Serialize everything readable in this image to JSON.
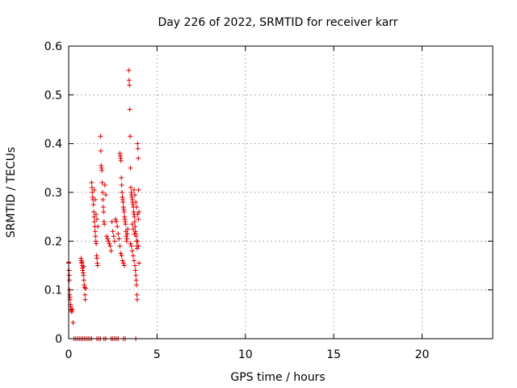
{
  "chart_data": {
    "type": "scatter",
    "title": "Day 226 of 2022, SRMTID for receiver karr",
    "xlabel": "GPS time / hours",
    "ylabel": "SRMTID / TECUs",
    "xlim": [
      0,
      24
    ],
    "ylim": [
      0,
      0.6
    ],
    "xticks": [
      0,
      5,
      10,
      15,
      20
    ],
    "xtick_labels": [
      "0",
      "5",
      "10",
      "15",
      "20"
    ],
    "yticks": [
      0,
      0.1,
      0.2,
      0.3,
      0.4,
      0.5,
      0.6
    ],
    "ytick_labels": [
      "0",
      "0.1",
      "0.2",
      "0.3",
      "0.4",
      "0.5",
      "0.6"
    ],
    "grid": true,
    "marker": "+",
    "color": "#dd0000",
    "series": [
      {
        "name": "SRMTID",
        "points": [
          [
            0.0,
            0.157
          ],
          [
            0.0,
            0.155
          ],
          [
            0.02,
            0.14
          ],
          [
            0.03,
            0.13
          ],
          [
            0.04,
            0.12
          ],
          [
            0.05,
            0.1
          ],
          [
            0.06,
            0.09
          ],
          [
            0.07,
            0.085
          ],
          [
            0.08,
            0.08
          ],
          [
            0.1,
            0.07
          ],
          [
            0.12,
            0.065
          ],
          [
            0.13,
            0.06
          ],
          [
            0.15,
            0.058
          ],
          [
            0.18,
            0.055
          ],
          [
            0.2,
            0.06
          ],
          [
            0.25,
            0.033
          ],
          [
            0.3,
            0.0
          ],
          [
            0.4,
            0.0
          ],
          [
            0.5,
            0.0
          ],
          [
            0.6,
            0.0
          ],
          [
            0.7,
            0.0
          ],
          [
            0.8,
            0.0
          ],
          [
            0.9,
            0.0
          ],
          [
            1.0,
            0.0
          ],
          [
            1.1,
            0.0
          ],
          [
            1.2,
            0.0
          ],
          [
            1.3,
            0.0
          ],
          [
            1.6,
            0.0
          ],
          [
            1.7,
            0.0
          ],
          [
            1.8,
            0.0
          ],
          [
            2.0,
            0.0
          ],
          [
            2.1,
            0.0
          ],
          [
            2.4,
            0.0
          ],
          [
            2.5,
            0.0
          ],
          [
            2.6,
            0.0
          ],
          [
            2.7,
            0.0
          ],
          [
            2.8,
            0.0
          ],
          [
            3.1,
            0.0
          ],
          [
            3.2,
            0.0
          ],
          [
            3.8,
            0.0
          ],
          [
            0.7,
            0.165
          ],
          [
            0.72,
            0.16
          ],
          [
            0.74,
            0.155
          ],
          [
            0.76,
            0.15
          ],
          [
            0.78,
            0.145
          ],
          [
            0.8,
            0.14
          ],
          [
            0.82,
            0.135
          ],
          [
            0.84,
            0.13
          ],
          [
            0.86,
            0.12
          ],
          [
            0.88,
            0.11
          ],
          [
            0.9,
            0.105
          ],
          [
            0.92,
            0.09
          ],
          [
            0.94,
            0.08
          ],
          [
            0.96,
            0.103
          ],
          [
            0.75,
            0.157
          ],
          [
            0.85,
            0.148
          ],
          [
            1.3,
            0.32
          ],
          [
            1.32,
            0.31
          ],
          [
            1.34,
            0.3
          ],
          [
            1.36,
            0.29
          ],
          [
            1.38,
            0.285
          ],
          [
            1.4,
            0.275
          ],
          [
            1.42,
            0.26
          ],
          [
            1.44,
            0.25
          ],
          [
            1.46,
            0.24
          ],
          [
            1.48,
            0.23
          ],
          [
            1.5,
            0.22
          ],
          [
            1.52,
            0.21
          ],
          [
            1.54,
            0.2
          ],
          [
            1.56,
            0.195
          ],
          [
            1.58,
            0.17
          ],
          [
            1.6,
            0.165
          ],
          [
            1.62,
            0.155
          ],
          [
            1.64,
            0.15
          ],
          [
            1.45,
            0.305
          ],
          [
            1.5,
            0.285
          ],
          [
            1.55,
            0.255
          ],
          [
            1.6,
            0.245
          ],
          [
            1.65,
            0.23
          ],
          [
            1.8,
            0.415
          ],
          [
            1.82,
            0.385
          ],
          [
            1.84,
            0.355
          ],
          [
            1.86,
            0.35
          ],
          [
            1.88,
            0.345
          ],
          [
            1.9,
            0.32
          ],
          [
            1.92,
            0.3
          ],
          [
            1.94,
            0.285
          ],
          [
            1.96,
            0.27
          ],
          [
            1.98,
            0.26
          ],
          [
            2.0,
            0.24
          ],
          [
            2.02,
            0.235
          ],
          [
            2.05,
            0.315
          ],
          [
            2.1,
            0.295
          ],
          [
            2.15,
            0.21
          ],
          [
            2.2,
            0.205
          ],
          [
            2.25,
            0.2
          ],
          [
            2.3,
            0.195
          ],
          [
            2.35,
            0.19
          ],
          [
            2.4,
            0.18
          ],
          [
            2.45,
            0.24
          ],
          [
            2.5,
            0.22
          ],
          [
            2.55,
            0.21
          ],
          [
            2.6,
            0.2
          ],
          [
            2.65,
            0.245
          ],
          [
            2.7,
            0.24
          ],
          [
            2.75,
            0.23
          ],
          [
            2.8,
            0.215
          ],
          [
            2.85,
            0.205
          ],
          [
            2.9,
            0.19
          ],
          [
            2.95,
            0.175
          ],
          [
            3.0,
            0.17
          ],
          [
            3.05,
            0.16
          ],
          [
            3.1,
            0.155
          ],
          [
            3.15,
            0.15
          ],
          [
            2.9,
            0.38
          ],
          [
            2.92,
            0.375
          ],
          [
            2.94,
            0.37
          ],
          [
            2.96,
            0.365
          ],
          [
            2.98,
            0.33
          ],
          [
            3.0,
            0.315
          ],
          [
            3.02,
            0.3
          ],
          [
            3.04,
            0.29
          ],
          [
            3.06,
            0.285
          ],
          [
            3.08,
            0.28
          ],
          [
            3.1,
            0.27
          ],
          [
            3.12,
            0.265
          ],
          [
            3.14,
            0.26
          ],
          [
            3.16,
            0.25
          ],
          [
            3.18,
            0.245
          ],
          [
            3.2,
            0.24
          ],
          [
            3.22,
            0.235
          ],
          [
            3.24,
            0.22
          ],
          [
            3.26,
            0.21
          ],
          [
            3.28,
            0.2
          ],
          [
            3.3,
            0.205
          ],
          [
            3.32,
            0.215
          ],
          [
            3.34,
            0.225
          ],
          [
            3.4,
            0.55
          ],
          [
            3.42,
            0.53
          ],
          [
            3.44,
            0.52
          ],
          [
            3.46,
            0.47
          ],
          [
            3.48,
            0.415
          ],
          [
            3.5,
            0.35
          ],
          [
            3.52,
            0.31
          ],
          [
            3.54,
            0.3
          ],
          [
            3.56,
            0.295
          ],
          [
            3.58,
            0.29
          ],
          [
            3.6,
            0.285
          ],
          [
            3.62,
            0.28
          ],
          [
            3.64,
            0.275
          ],
          [
            3.66,
            0.27
          ],
          [
            3.68,
            0.26
          ],
          [
            3.7,
            0.255
          ],
          [
            3.72,
            0.25
          ],
          [
            3.74,
            0.24
          ],
          [
            3.76,
            0.23
          ],
          [
            3.78,
            0.22
          ],
          [
            3.8,
            0.215
          ],
          [
            3.82,
            0.21
          ],
          [
            3.84,
            0.2
          ],
          [
            3.86,
            0.19
          ],
          [
            3.88,
            0.185
          ],
          [
            3.5,
            0.195
          ],
          [
            3.55,
            0.19
          ],
          [
            3.6,
            0.18
          ],
          [
            3.65,
            0.17
          ],
          [
            3.7,
            0.16
          ],
          [
            3.75,
            0.15
          ],
          [
            3.78,
            0.14
          ],
          [
            3.8,
            0.13
          ],
          [
            3.82,
            0.12
          ],
          [
            3.84,
            0.11
          ],
          [
            3.86,
            0.09
          ],
          [
            3.88,
            0.08
          ],
          [
            3.9,
            0.4
          ],
          [
            3.92,
            0.39
          ],
          [
            3.94,
            0.37
          ],
          [
            3.96,
            0.305
          ],
          [
            3.98,
            0.26
          ],
          [
            3.7,
            0.305
          ],
          [
            3.75,
            0.295
          ],
          [
            3.8,
            0.28
          ],
          [
            3.85,
            0.27
          ],
          [
            3.9,
            0.255
          ],
          [
            3.95,
            0.245
          ],
          [
            3.6,
            0.235
          ],
          [
            3.65,
            0.225
          ],
          [
            3.72,
            0.215
          ],
          [
            3.9,
            0.2
          ],
          [
            3.95,
            0.19
          ],
          [
            3.98,
            0.155
          ]
        ]
      }
    ]
  }
}
